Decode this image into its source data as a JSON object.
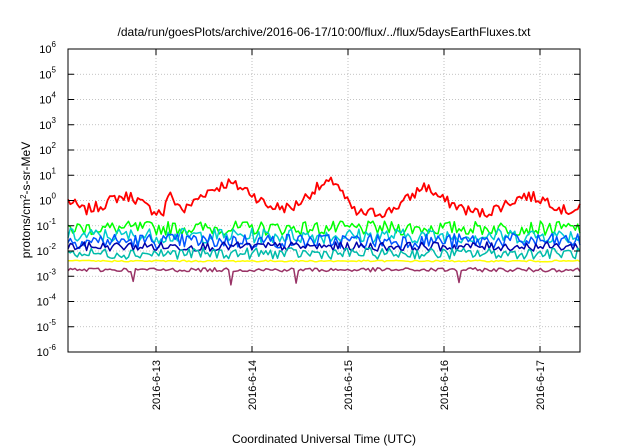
{
  "chart_data": {
    "type": "line",
    "title": "/data/run/goesPlots/archive/2016-06-17/10:00/flux/../flux/5daysEarthFluxes.txt",
    "xlabel": "Coordinated Universal Time (UTC)",
    "ylabel": "protons/cm^2-s-sr-MeV",
    "ylabel_parts": {
      "pre": "protons/cm",
      "sup": "2",
      "post": "-s-sr-MeV"
    },
    "y_scale": "log",
    "ylim": [
      1e-06,
      1000000.0
    ],
    "y_ticks": [
      {
        "base": "10",
        "exp": "-6",
        "value": 1e-06
      },
      {
        "base": "10",
        "exp": "-5",
        "value": 1e-05
      },
      {
        "base": "10",
        "exp": "-4",
        "value": 0.0001
      },
      {
        "base": "10",
        "exp": "-3",
        "value": 0.001
      },
      {
        "base": "10",
        "exp": "-2",
        "value": 0.01
      },
      {
        "base": "10",
        "exp": "-1",
        "value": 0.1
      },
      {
        "base": "10",
        "exp": "0",
        "value": 1
      },
      {
        "base": "10",
        "exp": "1",
        "value": 10
      },
      {
        "base": "10",
        "exp": "2",
        "value": 100
      },
      {
        "base": "10",
        "exp": "3",
        "value": 1000
      },
      {
        "base": "10",
        "exp": "4",
        "value": 10000
      },
      {
        "base": "10",
        "exp": "5",
        "value": 100000
      },
      {
        "base": "10",
        "exp": "6",
        "value": 1000000
      }
    ],
    "xlim": [
      "2016-06-12T02:00",
      "2016-06-17T10:00"
    ],
    "x_ticks": [
      {
        "label": "2016-6-13",
        "value": "2016-06-13T00:00"
      },
      {
        "label": "2016-6-14",
        "value": "2016-06-14T00:00"
      },
      {
        "label": "2016-6-15",
        "value": "2016-06-15T00:00"
      },
      {
        "label": "2016-6-16",
        "value": "2016-06-16T00:00"
      },
      {
        "label": "2016-6-17",
        "value": "2016-06-17T00:00"
      }
    ],
    "grid": true,
    "legend": "none",
    "series": [
      {
        "color": "#ff0000",
        "noise": 0.22,
        "points": [
          [
            "2016-06-12T02:00",
            1.0
          ],
          [
            "2016-06-12T06:00",
            0.4
          ],
          [
            "2016-06-12T10:00",
            0.6
          ],
          [
            "2016-06-12T14:00",
            1.3
          ],
          [
            "2016-06-12T18:00",
            1.5
          ],
          [
            "2016-06-12T22:00",
            0.5
          ],
          [
            "2016-06-13T02:00",
            0.3
          ],
          [
            "2016-06-13T03:00",
            1.8
          ],
          [
            "2016-06-13T07:00",
            0.4
          ],
          [
            "2016-06-13T12:00",
            2.0
          ],
          [
            "2016-06-13T18:00",
            5.0
          ],
          [
            "2016-06-13T23:00",
            2.5
          ],
          [
            "2016-06-14T04:00",
            0.6
          ],
          [
            "2016-06-14T10:00",
            0.5
          ],
          [
            "2016-06-14T16:00",
            3.0
          ],
          [
            "2016-06-14T21:00",
            6.0
          ],
          [
            "2016-06-14T23:30",
            1.0
          ],
          [
            "2016-06-15T02:00",
            0.3
          ],
          [
            "2016-06-15T10:00",
            0.35
          ],
          [
            "2016-06-15T16:00",
            1.5
          ],
          [
            "2016-06-15T19:00",
            4.0
          ],
          [
            "2016-06-16T00:00",
            1.0
          ],
          [
            "2016-06-16T06:00",
            0.4
          ],
          [
            "2016-06-16T10:00",
            0.3
          ],
          [
            "2016-06-16T16:00",
            0.8
          ],
          [
            "2016-06-16T20:00",
            1.6
          ],
          [
            "2016-06-17T02:00",
            1.0
          ],
          [
            "2016-06-17T06:00",
            0.4
          ],
          [
            "2016-06-17T10:00",
            0.45
          ]
        ]
      },
      {
        "color": "#00ff00",
        "noise": 0.28,
        "points": [
          [
            "2016-06-12T02:00",
            0.08
          ],
          [
            "2016-06-17T10:00",
            0.08
          ]
        ]
      },
      {
        "color": "#00cccc",
        "noise": 0.3,
        "points": [
          [
            "2016-06-12T02:00",
            0.04
          ],
          [
            "2016-06-17T10:00",
            0.04
          ]
        ]
      },
      {
        "color": "#0055ff",
        "noise": 0.3,
        "points": [
          [
            "2016-06-12T02:00",
            0.025
          ],
          [
            "2016-06-17T10:00",
            0.025
          ]
        ]
      },
      {
        "color": "#0000aa",
        "noise": 0.18,
        "points": [
          [
            "2016-06-12T02:00",
            0.015
          ],
          [
            "2016-06-17T10:00",
            0.015
          ]
        ]
      },
      {
        "color": "#00bbaa",
        "noise": 0.22,
        "points": [
          [
            "2016-06-12T02:00",
            0.008
          ],
          [
            "2016-06-17T10:00",
            0.008
          ]
        ]
      },
      {
        "color": "#ffff00",
        "noise": 0.03,
        "points": [
          [
            "2016-06-12T02:00",
            0.004
          ],
          [
            "2016-06-17T10:00",
            0.004
          ]
        ]
      },
      {
        "color": "#993366",
        "noise": 0.08,
        "points": [
          [
            "2016-06-12T02:00",
            0.0018
          ],
          [
            "2016-06-17T10:00",
            0.0018
          ]
        ]
      }
    ]
  }
}
